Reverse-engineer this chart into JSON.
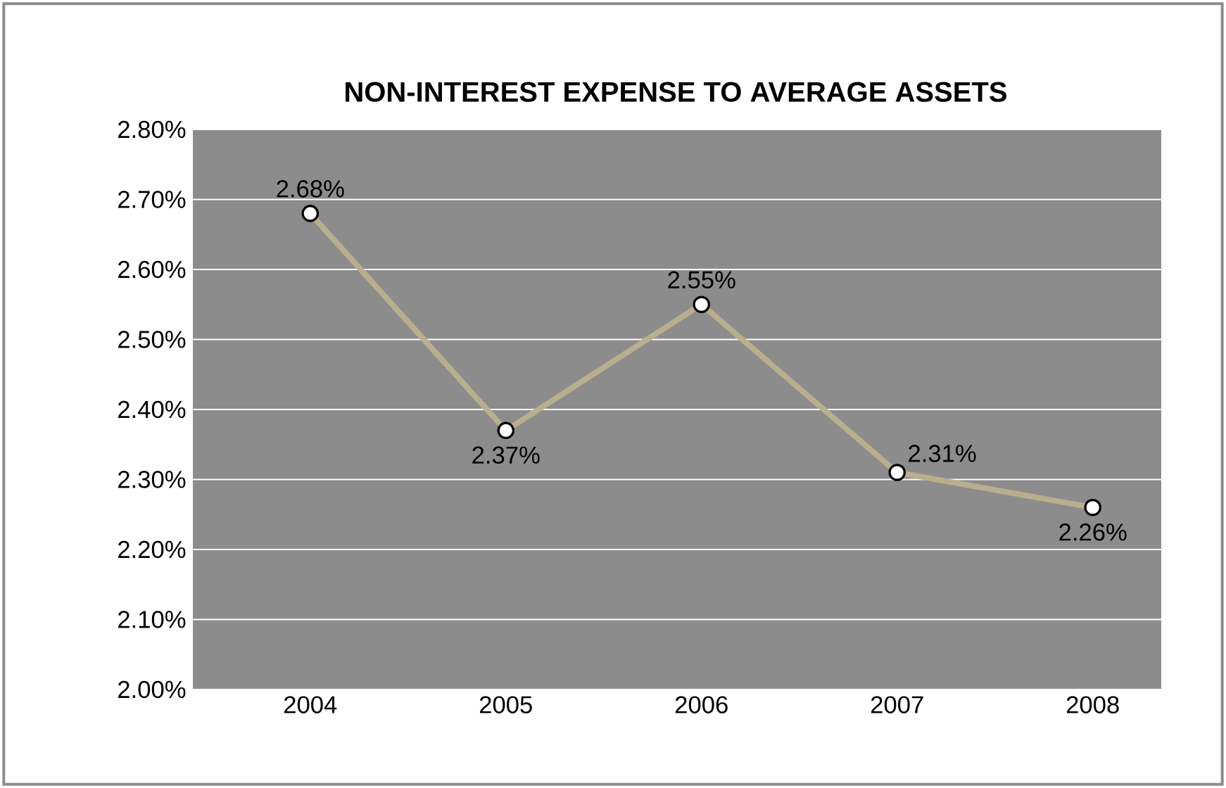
{
  "chart_data": {
    "type": "line",
    "title": "NON-INTEREST EXPENSE TO AVERAGE ASSETS",
    "categories": [
      "2004",
      "2005",
      "2006",
      "2007",
      "2008"
    ],
    "series": [
      {
        "color": "#b9ae8e",
        "values": [
          2.68,
          2.37,
          2.55,
          2.31,
          2.26
        ],
        "value_labels": [
          "2.68%",
          "2.37%",
          "2.55%",
          "2.31%",
          "2.26%"
        ]
      }
    ],
    "ylim": [
      2.0,
      2.8
    ],
    "yticks": [
      {
        "value": 2.0,
        "label": "2.00%"
      },
      {
        "value": 2.1,
        "label": "2.10%"
      },
      {
        "value": 2.2,
        "label": "2.20%"
      },
      {
        "value": 2.3,
        "label": "2.30%"
      },
      {
        "value": 2.4,
        "label": "2.40%"
      },
      {
        "value": 2.5,
        "label": "2.50%"
      },
      {
        "value": 2.6,
        "label": "2.60%"
      },
      {
        "value": 2.7,
        "label": "2.70%"
      },
      {
        "value": 2.8,
        "label": "2.80%"
      }
    ],
    "grid": "y",
    "marker": "circle",
    "line_style": "solid"
  }
}
